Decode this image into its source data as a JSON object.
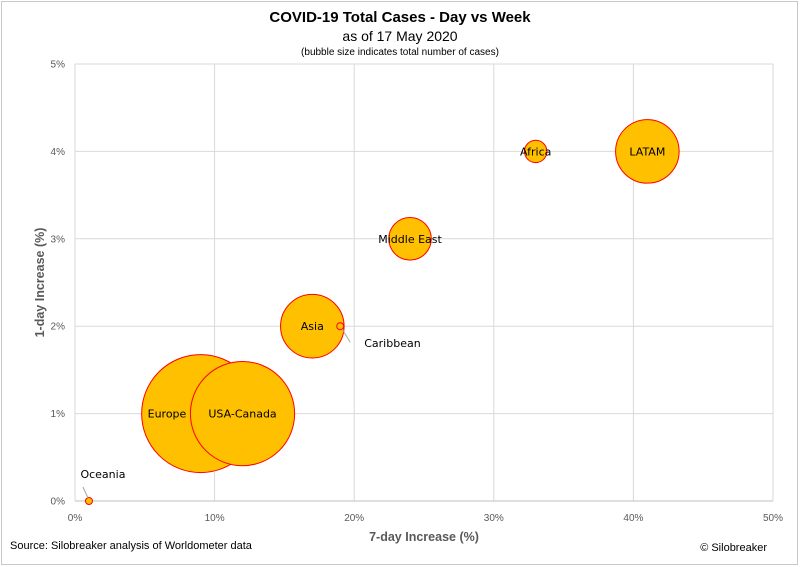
{
  "chart_data": {
    "type": "bubble",
    "title": "COVID-19 Total Cases - Day vs Week",
    "subtitle": "as of 17 May 2020",
    "note": "(bubble size indicates total number of cases)",
    "xlabel": "7-day Increase (%)",
    "ylabel": "1-day Increase (%)",
    "xlim": [
      0,
      50
    ],
    "ylim": [
      0,
      5
    ],
    "xticks": [
      "0%",
      "10%",
      "20%",
      "30%",
      "40%",
      "50%"
    ],
    "yticks": [
      "0%",
      "1%",
      "2%",
      "3%",
      "4%",
      "5%"
    ],
    "grid": true,
    "colors": {
      "fill": "#FFC000",
      "stroke": "#FF0000",
      "grid": "#d9d9d9"
    },
    "points": [
      {
        "name": "Europe",
        "x": 9,
        "y": 1,
        "size": 1.0,
        "label_pos": "left"
      },
      {
        "name": "USA-Canada",
        "x": 12,
        "y": 1,
        "size": 0.78,
        "label_pos": "center"
      },
      {
        "name": "Asia",
        "x": 17,
        "y": 2,
        "size": 0.29,
        "label_pos": "center"
      },
      {
        "name": "Caribbean",
        "x": 19,
        "y": 2,
        "size": 0.0025,
        "label_pos": "callout"
      },
      {
        "name": "Middle East",
        "x": 24,
        "y": 3,
        "size": 0.13,
        "label_pos": "center"
      },
      {
        "name": "Africa",
        "x": 33,
        "y": 4,
        "size": 0.036,
        "label_pos": "center"
      },
      {
        "name": "LATAM",
        "x": 41,
        "y": 4,
        "size": 0.29,
        "label_pos": "center"
      },
      {
        "name": "Oceania",
        "x": 1,
        "y": 0,
        "size": 0.0008,
        "label_pos": "above"
      }
    ]
  },
  "footer": {
    "source": "Source: Silobreaker analysis of Worldometer data",
    "copyright": "© Silobreaker"
  }
}
